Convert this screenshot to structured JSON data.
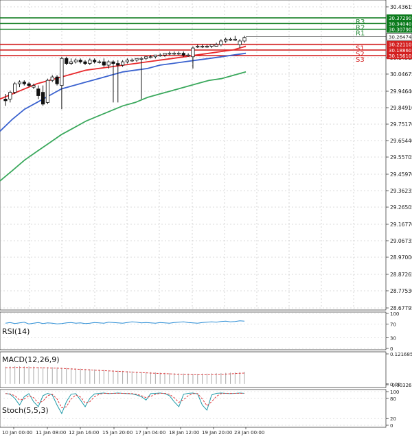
{
  "chart_data": {
    "type": "candlestick",
    "price_axis_ticks": [
      "30.43615",
      "30.14515",
      "30.04675",
      "29.94640",
      "29.84910",
      "29.75170",
      "29.65440",
      "29.55705",
      "29.45970",
      "29.36235",
      "29.26505",
      "29.16770",
      "29.06735",
      "28.97000",
      "28.87265",
      "28.77530",
      "28.67795"
    ],
    "current_price": "30.26474",
    "levels": {
      "resistance": [
        {
          "name": "R3",
          "value": "30.37290"
        },
        {
          "name": "R2",
          "value": "30.34040"
        },
        {
          "name": "R1",
          "value": "30.30790"
        }
      ],
      "support": [
        {
          "name": "S1",
          "value": "30.22110"
        },
        {
          "name": "S2",
          "value": "30.18860"
        },
        {
          "name": "S3",
          "value": "30.15610"
        }
      ]
    },
    "time_labels": [
      "10 Jan 00:00",
      "11 Jan 08:00",
      "12 Jan 16:00",
      "15 Jan 20:00",
      "17 Jan 04:00",
      "18 Jan 12:00",
      "19 Jan 20:00",
      "23 Jan 00:00"
    ],
    "candles": [
      {
        "o": 29.9,
        "h": 29.93,
        "l": 29.86,
        "c": 29.89
      },
      {
        "o": 29.9,
        "h": 29.95,
        "l": 29.88,
        "c": 29.94
      },
      {
        "o": 29.94,
        "h": 30.0,
        "l": 29.93,
        "c": 29.99
      },
      {
        "o": 29.99,
        "h": 30.01,
        "l": 29.97,
        "c": 30.0
      },
      {
        "o": 30.0,
        "h": 30.01,
        "l": 29.98,
        "c": 29.99
      },
      {
        "o": 29.99,
        "h": 30.0,
        "l": 29.97,
        "c": 29.98
      },
      {
        "o": 29.97,
        "h": 29.99,
        "l": 29.96,
        "c": 29.98
      },
      {
        "o": 29.96,
        "h": 29.98,
        "l": 29.9,
        "c": 29.92
      },
      {
        "o": 29.94,
        "h": 29.98,
        "l": 29.86,
        "c": 29.87
      },
      {
        "o": 29.88,
        "h": 30.02,
        "l": 29.87,
        "c": 30.01
      },
      {
        "o": 30.01,
        "h": 30.04,
        "l": 30.0,
        "c": 30.03
      },
      {
        "o": 30.03,
        "h": 30.04,
        "l": 29.98,
        "c": 29.99
      },
      {
        "o": 29.98,
        "h": 30.15,
        "l": 29.84,
        "c": 30.14
      },
      {
        "o": 30.14,
        "h": 30.15,
        "l": 30.1,
        "c": 30.11
      },
      {
        "o": 30.11,
        "h": 30.14,
        "l": 30.1,
        "c": 30.12
      },
      {
        "o": 30.12,
        "h": 30.14,
        "l": 30.11,
        "c": 30.13
      },
      {
        "o": 30.13,
        "h": 30.14,
        "l": 30.11,
        "c": 30.12
      },
      {
        "o": 30.12,
        "h": 30.13,
        "l": 30.1,
        "c": 30.11
      },
      {
        "o": 30.11,
        "h": 30.14,
        "l": 30.1,
        "c": 30.13
      },
      {
        "o": 30.13,
        "h": 30.14,
        "l": 30.11,
        "c": 30.12
      },
      {
        "o": 30.12,
        "h": 30.13,
        "l": 30.11,
        "c": 30.12
      },
      {
        "o": 30.12,
        "h": 30.14,
        "l": 30.09,
        "c": 30.1
      },
      {
        "o": 30.1,
        "h": 30.13,
        "l": 30.08,
        "c": 30.12
      },
      {
        "o": 30.12,
        "h": 30.13,
        "l": 29.88,
        "c": 30.11
      },
      {
        "o": 30.11,
        "h": 30.13,
        "l": 29.88,
        "c": 30.1
      },
      {
        "o": 30.1,
        "h": 30.13,
        "l": 30.09,
        "c": 30.12
      },
      {
        "o": 30.12,
        "h": 30.14,
        "l": 30.11,
        "c": 30.13
      },
      {
        "o": 30.13,
        "h": 30.14,
        "l": 30.12,
        "c": 30.13
      },
      {
        "o": 30.13,
        "h": 30.14,
        "l": 30.12,
        "c": 30.14
      },
      {
        "o": 30.14,
        "h": 30.15,
        "l": 29.9,
        "c": 30.14
      },
      {
        "o": 30.14,
        "h": 30.15,
        "l": 30.13,
        "c": 30.15
      },
      {
        "o": 30.15,
        "h": 30.16,
        "l": 30.14,
        "c": 30.15
      },
      {
        "o": 30.15,
        "h": 30.16,
        "l": 30.14,
        "c": 30.16
      },
      {
        "o": 30.16,
        "h": 30.17,
        "l": 30.15,
        "c": 30.16
      },
      {
        "o": 30.16,
        "h": 30.17,
        "l": 30.15,
        "c": 30.17
      },
      {
        "o": 30.17,
        "h": 30.18,
        "l": 30.16,
        "c": 30.17
      },
      {
        "o": 30.17,
        "h": 30.18,
        "l": 30.16,
        "c": 30.17
      },
      {
        "o": 30.17,
        "h": 30.18,
        "l": 30.16,
        "c": 30.17
      },
      {
        "o": 30.17,
        "h": 30.18,
        "l": 30.15,
        "c": 30.16
      },
      {
        "o": 30.16,
        "h": 30.17,
        "l": 30.15,
        "c": 30.16
      },
      {
        "o": 30.15,
        "h": 30.21,
        "l": 30.08,
        "c": 30.2
      },
      {
        "o": 30.21,
        "h": 30.22,
        "l": 30.2,
        "c": 30.21
      },
      {
        "o": 30.21,
        "h": 30.22,
        "l": 30.2,
        "c": 30.21
      },
      {
        "o": 30.21,
        "h": 30.22,
        "l": 30.2,
        "c": 30.21
      },
      {
        "o": 30.21,
        "h": 30.22,
        "l": 30.2,
        "c": 30.22
      },
      {
        "o": 30.21,
        "h": 30.23,
        "l": 30.21,
        "c": 30.22
      },
      {
        "o": 30.22,
        "h": 30.25,
        "l": 30.21,
        "c": 30.24
      },
      {
        "o": 30.24,
        "h": 30.26,
        "l": 30.23,
        "c": 30.25
      },
      {
        "o": 30.25,
        "h": 30.26,
        "l": 30.24,
        "c": 30.25
      },
      {
        "o": 30.25,
        "h": 30.27,
        "l": 30.24,
        "c": 30.25
      },
      {
        "o": 30.22,
        "h": 30.25,
        "l": 30.2,
        "c": 30.24
      },
      {
        "o": 30.24,
        "h": 30.27,
        "l": 30.23,
        "c": 30.26
      }
    ],
    "moving_averages": [
      {
        "color": "#e8282b",
        "values": [
          29.9,
          29.93,
          29.96,
          29.99,
          30.01,
          30.03,
          30.05,
          30.07,
          30.08,
          30.09,
          30.1,
          30.11,
          30.12,
          30.13,
          30.14,
          30.15,
          30.16,
          30.17,
          30.18,
          30.19,
          30.21
        ]
      },
      {
        "color": "#3a62cf",
        "values": [
          29.71,
          29.78,
          29.84,
          29.88,
          29.92,
          29.96,
          29.98,
          30.0,
          30.02,
          30.04,
          30.06,
          30.07,
          30.08,
          30.1,
          30.11,
          30.12,
          30.13,
          30.14,
          30.15,
          30.16,
          30.17
        ]
      },
      {
        "color": "#3aa85c",
        "values": [
          29.42,
          29.48,
          29.54,
          29.59,
          29.64,
          29.69,
          29.73,
          29.77,
          29.8,
          29.83,
          29.86,
          29.88,
          29.91,
          29.93,
          29.95,
          29.97,
          29.99,
          30.01,
          30.02,
          30.04,
          30.06
        ]
      }
    ],
    "rsi": {
      "label": "RSI(14)",
      "ticks": [
        "100",
        "70",
        "30",
        "0"
      ],
      "values": [
        72,
        74,
        71,
        73,
        75,
        70,
        72,
        74,
        71,
        73,
        72,
        70,
        71,
        73,
        74,
        72,
        73,
        71,
        72,
        74,
        73,
        72,
        75,
        74,
        73,
        72,
        74,
        76,
        75,
        73,
        74,
        73,
        72,
        74,
        73,
        72,
        74,
        75,
        76,
        74,
        73,
        72,
        74,
        75,
        76,
        75,
        77,
        78,
        76,
        77,
        79,
        78
      ]
    },
    "macd": {
      "label": "MACD(12,26,9)",
      "ticks": [
        "0.121685",
        "0.00",
        "-0.00326"
      ],
      "histogram": [
        0.07,
        0.071,
        0.072,
        0.072,
        0.071,
        0.071,
        0.07,
        0.069,
        0.069,
        0.068,
        0.068,
        0.067,
        0.066,
        0.065,
        0.064,
        0.063,
        0.062,
        0.061,
        0.06,
        0.059,
        0.058,
        0.057,
        0.056,
        0.055,
        0.054,
        0.053,
        0.052,
        0.051,
        0.05,
        0.049,
        0.048,
        0.048,
        0.047,
        0.046,
        0.045,
        0.044,
        0.044,
        0.043,
        0.042,
        0.042,
        0.041,
        0.041,
        0.042,
        0.042,
        0.043,
        0.044,
        0.044,
        0.045,
        0.046,
        0.047,
        0.048,
        0.049
      ],
      "signal": [
        0.066,
        0.066,
        0.067,
        0.067,
        0.067,
        0.066,
        0.066,
        0.066,
        0.065,
        0.065,
        0.064,
        0.064,
        0.063,
        0.062,
        0.061,
        0.06,
        0.059,
        0.058,
        0.057,
        0.056,
        0.055,
        0.054,
        0.053,
        0.052,
        0.051,
        0.05,
        0.049,
        0.048,
        0.047,
        0.046,
        0.045,
        0.044,
        0.043,
        0.042,
        0.042,
        0.041,
        0.04,
        0.039,
        0.039,
        0.038,
        0.038,
        0.037,
        0.037,
        0.037,
        0.038,
        0.038,
        0.039,
        0.04,
        0.041,
        0.042,
        0.043,
        0.044
      ]
    },
    "stoch": {
      "label": "Stoch(5,5,3)",
      "ticks": [
        "100",
        "80",
        "20",
        "0"
      ],
      "k": [
        95,
        92,
        80,
        60,
        85,
        94,
        70,
        55,
        88,
        95,
        90,
        60,
        35,
        70,
        92,
        94,
        75,
        55,
        80,
        93,
        95,
        96,
        94,
        95,
        96,
        95,
        94,
        93,
        90,
        85,
        75,
        94,
        95,
        96,
        94,
        88,
        70,
        55,
        92,
        95,
        96,
        93,
        60,
        45,
        90,
        95,
        96,
        95,
        94,
        95,
        96,
        95
      ],
      "d": [
        94,
        93,
        88,
        75,
        78,
        88,
        82,
        66,
        72,
        88,
        92,
        78,
        52,
        55,
        78,
        90,
        84,
        66,
        70,
        85,
        92,
        95,
        95,
        95,
        95,
        95,
        95,
        94,
        92,
        88,
        82,
        86,
        92,
        95,
        95,
        92,
        82,
        68,
        76,
        88,
        94,
        94,
        78,
        58,
        70,
        86,
        94,
        95,
        95,
        95,
        95,
        95
      ]
    }
  }
}
